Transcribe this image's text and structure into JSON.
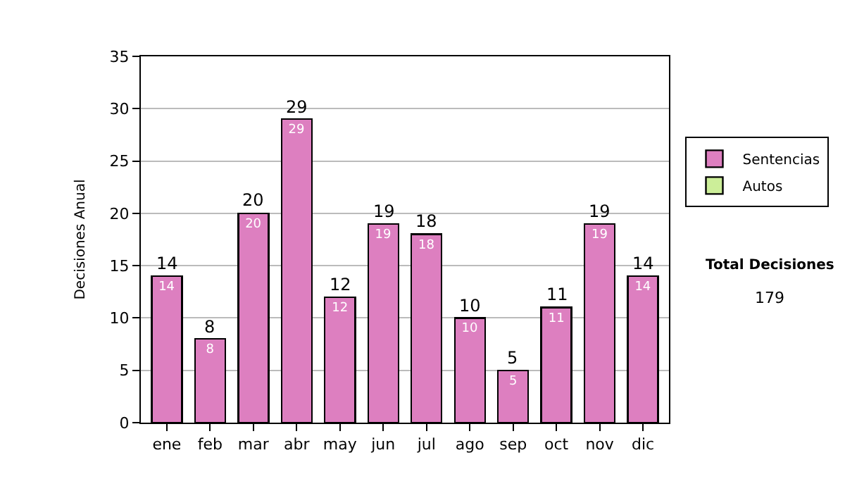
{
  "chart_data": {
    "type": "bar",
    "ylabel": "Decisiones Anual",
    "categories": [
      "ene",
      "feb",
      "mar",
      "abr",
      "may",
      "jun",
      "jul",
      "ago",
      "sep",
      "oct",
      "nov",
      "dic"
    ],
    "series": [
      {
        "name": "Sentencias",
        "color": "#dd7fc0",
        "values": [
          14,
          8,
          20,
          29,
          12,
          19,
          18,
          10,
          5,
          11,
          19,
          14
        ]
      },
      {
        "name": "Autos",
        "color": "#ccee99",
        "values": [
          null,
          null,
          null,
          null,
          null,
          null,
          null,
          null,
          null,
          null,
          null,
          null
        ]
      }
    ],
    "stacked": true,
    "data_labels": true,
    "totals": [
      "14",
      "8",
      "20",
      "29",
      "12",
      "19",
      "18",
      "10",
      "5",
      "11",
      "19",
      "14"
    ],
    "ylim": [
      0,
      35
    ],
    "yticks": [
      0,
      5,
      10,
      15,
      20,
      25,
      30,
      35
    ],
    "grid": "y",
    "legend": "right",
    "annotations": [
      "Total Decisiones",
      "179"
    ]
  }
}
